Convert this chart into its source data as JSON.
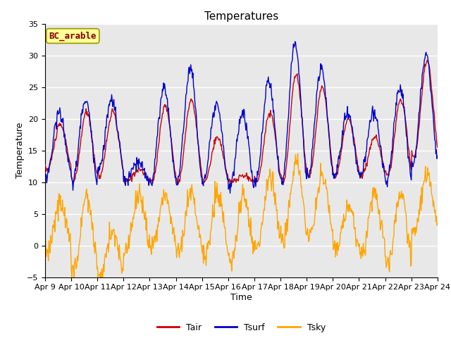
{
  "title": "Temperatures",
  "xlabel": "Time",
  "ylabel": "Temperature",
  "annotation": "BC_arable",
  "ylim": [
    -5,
    35
  ],
  "x_tick_labels": [
    "Apr 9",
    "Apr 10",
    "Apr 11",
    "Apr 12",
    "Apr 13",
    "Apr 14",
    "Apr 15",
    "Apr 16",
    "Apr 17",
    "Apr 18",
    "Apr 19",
    "Apr 20",
    "Apr 21",
    "Apr 22",
    "Apr 23",
    "Apr 24"
  ],
  "colors": {
    "Tair": "#cc0000",
    "Tsurf": "#0000cc",
    "Tsky": "#ffa500",
    "background": "#e8e8e8",
    "annotation_bg": "#ffff99",
    "annotation_border": "#999900"
  },
  "title_fontsize": 11,
  "axis_label_fontsize": 9,
  "tick_fontsize": 8,
  "annotation_fontsize": 9,
  "legend_fontsize": 9,
  "daily_max_tair": [
    19,
    21,
    21,
    12,
    22,
    23,
    17,
    11,
    21,
    27,
    25,
    20,
    17,
    23,
    29
  ],
  "daily_min_tair": [
    12,
    10,
    11,
    10,
    10,
    10,
    10,
    10,
    10,
    10,
    11,
    11,
    11,
    11,
    14
  ],
  "daily_max_tsurf": [
    21,
    23,
    23,
    13,
    25,
    28,
    22,
    21,
    26,
    32,
    28,
    21,
    21,
    25,
    30
  ],
  "daily_min_tsurf": [
    11,
    10,
    12,
    10,
    10,
    10,
    10,
    9,
    10,
    10,
    11,
    11,
    11,
    10,
    13
  ],
  "daily_max_tsky": [
    7,
    8,
    2,
    8,
    8,
    8,
    8,
    8,
    11,
    13,
    11,
    6,
    8,
    8,
    11
  ],
  "daily_min_tsky": [
    -1,
    -4,
    -5,
    -1,
    0,
    -1,
    -2,
    -2,
    0,
    1,
    1,
    -1,
    -1,
    -3,
    2
  ]
}
